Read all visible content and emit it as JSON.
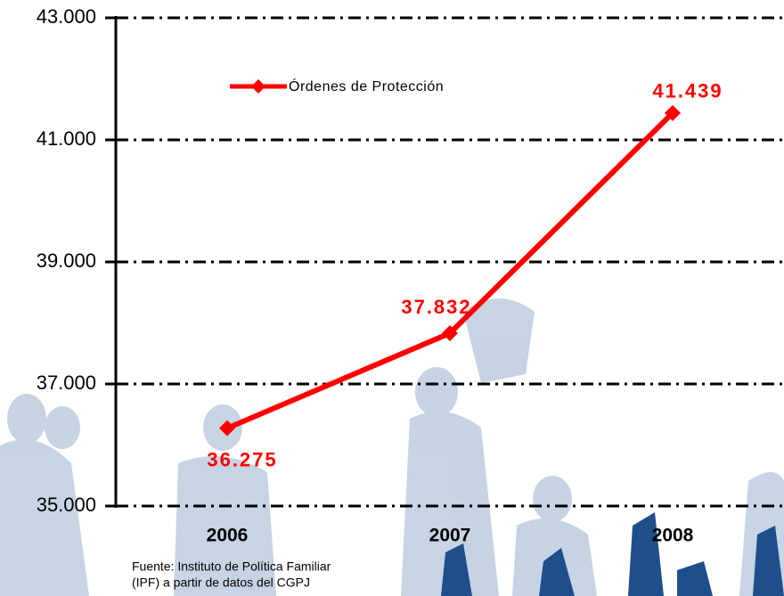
{
  "chart_data": {
    "type": "line",
    "categories": [
      "2006",
      "2007",
      "2008"
    ],
    "series": [
      {
        "name": "Órdenes de Protección",
        "color": "#ff0000",
        "values": [
          36275,
          37832,
          41439
        ],
        "value_labels": [
          "36.275",
          "37.832",
          "41.439"
        ]
      }
    ],
    "ylim": [
      35000,
      43000
    ],
    "yticks": [
      {
        "value": 35000,
        "label": "35.000"
      },
      {
        "value": 37000,
        "label": "37.000"
      },
      {
        "value": 39000,
        "label": "39.000"
      },
      {
        "value": 41000,
        "label": "41.000"
      },
      {
        "value": 43000,
        "label": "43.000"
      }
    ],
    "grid": true,
    "source": [
      "Fuente: Instituto de Política Familiar",
      "(IPF) a partir de datos del CGPJ"
    ]
  }
}
